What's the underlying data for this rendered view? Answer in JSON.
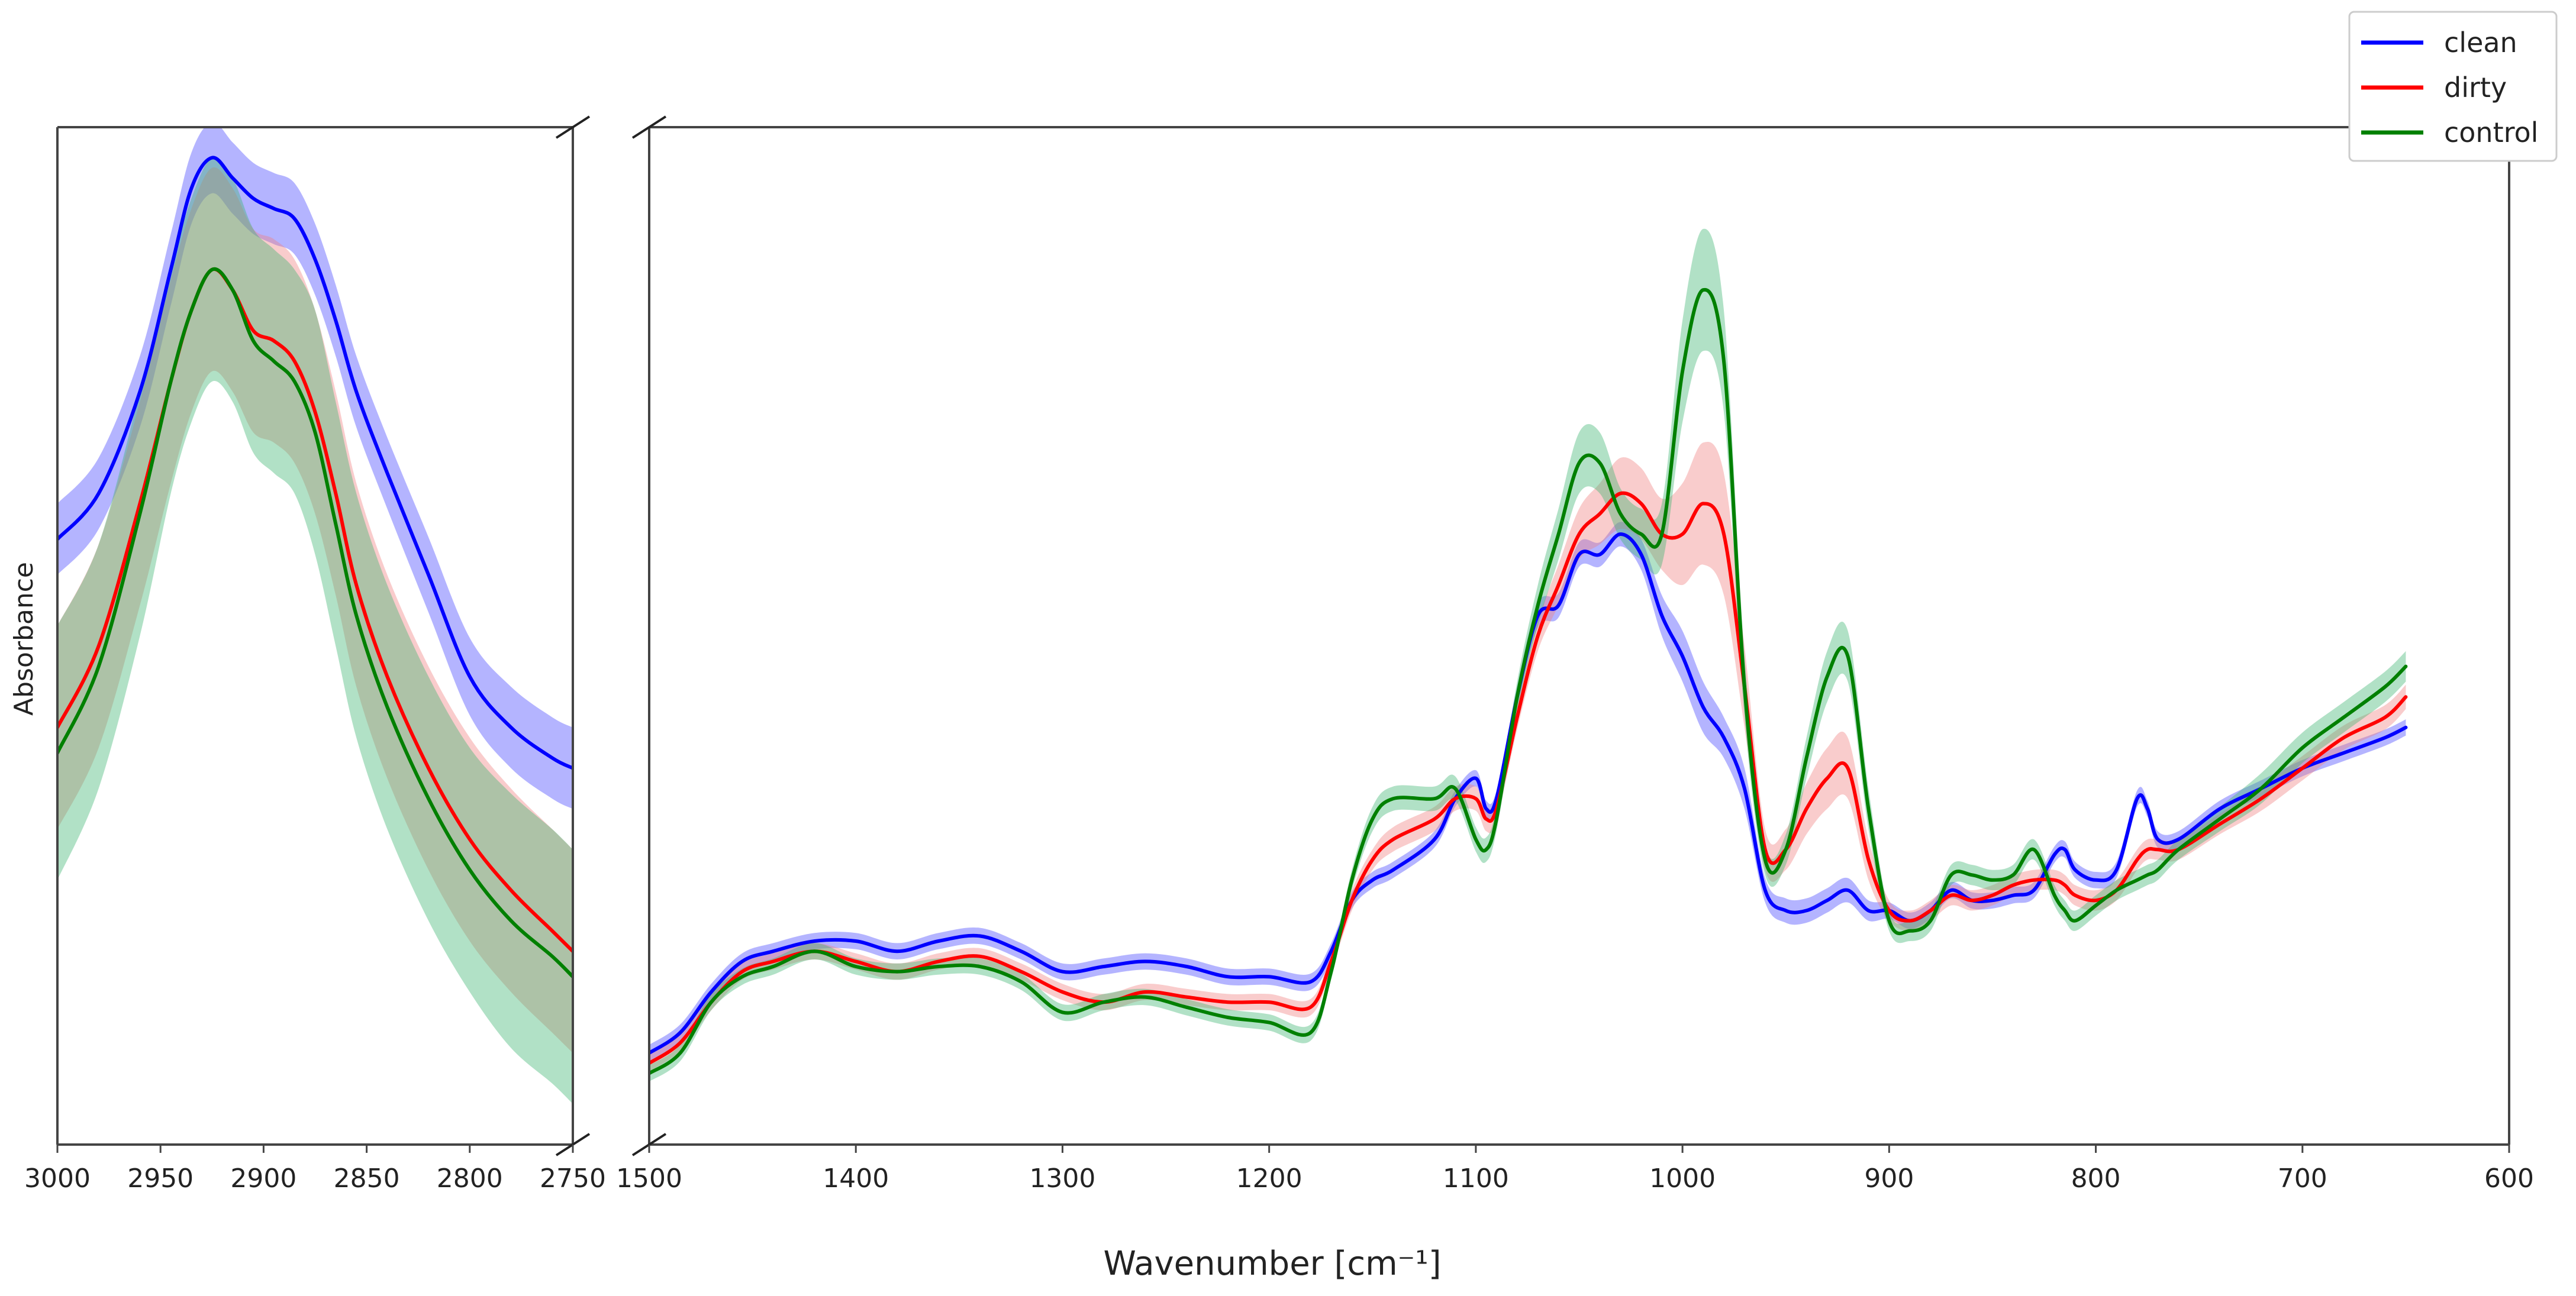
{
  "chart_data": {
    "type": "line",
    "xlabel": "Wavenumber [cm⁻¹]",
    "ylabel": "Absorbance",
    "grid": false,
    "legend_position": "top-right",
    "broken_x_axis": true,
    "panels": [
      {
        "name": "left",
        "xlim": [
          3000,
          2750
        ],
        "xticks": [
          3000,
          2950,
          2900,
          2850,
          2800,
          2750
        ],
        "ylim": [
          0,
          1
        ]
      },
      {
        "name": "right",
        "xlim": [
          1500,
          600
        ],
        "xticks": [
          1500,
          1400,
          1300,
          1200,
          1100,
          1000,
          900,
          800,
          700,
          600
        ],
        "ylim": [
          0,
          1
        ]
      }
    ],
    "series": [
      {
        "name": "clean",
        "color": "#0000ff",
        "band_color": "#4444ff",
        "left": {
          "x": [
            3000,
            2980,
            2960,
            2945,
            2935,
            2925,
            2915,
            2905,
            2895,
            2885,
            2875,
            2865,
            2855,
            2840,
            2820,
            2800,
            2780,
            2760,
            2750
          ],
          "y": [
            0.595,
            0.64,
            0.74,
            0.86,
            0.94,
            0.97,
            0.95,
            0.93,
            0.92,
            0.91,
            0.87,
            0.81,
            0.74,
            0.66,
            0.56,
            0.46,
            0.41,
            0.38,
            0.37
          ],
          "band": [
            0.035,
            0.035,
            0.035,
            0.035,
            0.035,
            0.035,
            0.035,
            0.035,
            0.035,
            0.035,
            0.035,
            0.035,
            0.035,
            0.035,
            0.037,
            0.038,
            0.04,
            0.04,
            0.04
          ]
        },
        "right": {
          "x": [
            1500,
            1485,
            1470,
            1455,
            1440,
            1420,
            1400,
            1380,
            1360,
            1340,
            1320,
            1300,
            1280,
            1260,
            1240,
            1220,
            1200,
            1180,
            1170,
            1160,
            1150,
            1140,
            1120,
            1110,
            1100,
            1095,
            1090,
            1080,
            1070,
            1060,
            1050,
            1040,
            1030,
            1020,
            1010,
            1000,
            990,
            980,
            970,
            960,
            950,
            940,
            930,
            920,
            910,
            900,
            890,
            880,
            870,
            860,
            850,
            840,
            830,
            820,
            815,
            810,
            800,
            790,
            780,
            775,
            770,
            760,
            740,
            720,
            700,
            680,
            660,
            650
          ],
          "y": [
            0.09,
            0.11,
            0.15,
            0.18,
            0.19,
            0.2,
            0.2,
            0.19,
            0.2,
            0.205,
            0.19,
            0.17,
            0.175,
            0.18,
            0.175,
            0.165,
            0.165,
            0.16,
            0.19,
            0.24,
            0.26,
            0.27,
            0.3,
            0.34,
            0.36,
            0.33,
            0.34,
            0.44,
            0.52,
            0.53,
            0.58,
            0.58,
            0.6,
            0.58,
            0.52,
            0.48,
            0.43,
            0.4,
            0.35,
            0.25,
            0.23,
            0.23,
            0.24,
            0.25,
            0.23,
            0.23,
            0.22,
            0.23,
            0.25,
            0.24,
            0.24,
            0.245,
            0.25,
            0.285,
            0.29,
            0.27,
            0.26,
            0.27,
            0.34,
            0.33,
            0.3,
            0.3,
            0.33,
            0.35,
            0.37,
            0.385,
            0.4,
            0.41
          ],
          "band": [
            0.008,
            0.008,
            0.008,
            0.008,
            0.008,
            0.008,
            0.008,
            0.008,
            0.008,
            0.008,
            0.008,
            0.008,
            0.008,
            0.008,
            0.008,
            0.008,
            0.008,
            0.008,
            0.008,
            0.008,
            0.008,
            0.008,
            0.008,
            0.008,
            0.008,
            0.008,
            0.008,
            0.01,
            0.012,
            0.012,
            0.012,
            0.012,
            0.012,
            0.015,
            0.02,
            0.025,
            0.025,
            0.02,
            0.02,
            0.012,
            0.012,
            0.012,
            0.012,
            0.012,
            0.01,
            0.008,
            0.008,
            0.008,
            0.008,
            0.008,
            0.008,
            0.008,
            0.008,
            0.008,
            0.008,
            0.008,
            0.008,
            0.008,
            0.008,
            0.008,
            0.008,
            0.008,
            0.008,
            0.008,
            0.008,
            0.008,
            0.008,
            0.008
          ]
        }
      },
      {
        "name": "dirty",
        "color": "#ff0000",
        "band_color": "#f08080",
        "left": {
          "x": [
            3000,
            2980,
            2960,
            2945,
            2935,
            2925,
            2915,
            2905,
            2895,
            2885,
            2875,
            2865,
            2855,
            2840,
            2820,
            2800,
            2780,
            2760,
            2750
          ],
          "y": [
            0.41,
            0.49,
            0.63,
            0.75,
            0.82,
            0.86,
            0.84,
            0.8,
            0.79,
            0.77,
            0.72,
            0.64,
            0.55,
            0.46,
            0.37,
            0.3,
            0.25,
            0.21,
            0.19
          ],
          "band": [
            0.1,
            0.1,
            0.1,
            0.1,
            0.1,
            0.1,
            0.1,
            0.1,
            0.1,
            0.1,
            0.1,
            0.1,
            0.1,
            0.1,
            0.1,
            0.1,
            0.1,
            0.1,
            0.1
          ]
        },
        "right": {
          "x": [
            1500,
            1485,
            1470,
            1455,
            1440,
            1420,
            1400,
            1380,
            1360,
            1340,
            1320,
            1300,
            1280,
            1260,
            1240,
            1220,
            1200,
            1180,
            1170,
            1160,
            1150,
            1140,
            1120,
            1110,
            1100,
            1095,
            1090,
            1080,
            1070,
            1060,
            1050,
            1040,
            1030,
            1020,
            1010,
            1000,
            990,
            980,
            970,
            960,
            950,
            940,
            930,
            920,
            910,
            900,
            890,
            880,
            870,
            860,
            850,
            840,
            830,
            820,
            815,
            810,
            800,
            790,
            780,
            775,
            770,
            760,
            740,
            720,
            700,
            680,
            660,
            650
          ],
          "y": [
            0.08,
            0.1,
            0.14,
            0.17,
            0.18,
            0.19,
            0.18,
            0.17,
            0.18,
            0.185,
            0.17,
            0.15,
            0.14,
            0.15,
            0.145,
            0.14,
            0.14,
            0.135,
            0.18,
            0.24,
            0.28,
            0.3,
            0.32,
            0.34,
            0.34,
            0.32,
            0.33,
            0.42,
            0.5,
            0.55,
            0.6,
            0.62,
            0.64,
            0.63,
            0.6,
            0.6,
            0.63,
            0.6,
            0.45,
            0.29,
            0.29,
            0.33,
            0.36,
            0.37,
            0.28,
            0.23,
            0.22,
            0.23,
            0.245,
            0.24,
            0.245,
            0.255,
            0.26,
            0.26,
            0.255,
            0.245,
            0.24,
            0.25,
            0.28,
            0.29,
            0.29,
            0.29,
            0.315,
            0.34,
            0.37,
            0.4,
            0.42,
            0.44
          ],
          "band": [
            0.008,
            0.008,
            0.008,
            0.008,
            0.008,
            0.008,
            0.008,
            0.008,
            0.008,
            0.008,
            0.008,
            0.008,
            0.008,
            0.008,
            0.008,
            0.008,
            0.008,
            0.008,
            0.008,
            0.01,
            0.01,
            0.012,
            0.012,
            0.012,
            0.012,
            0.012,
            0.012,
            0.012,
            0.015,
            0.02,
            0.025,
            0.03,
            0.035,
            0.035,
            0.035,
            0.05,
            0.06,
            0.06,
            0.04,
            0.02,
            0.02,
            0.025,
            0.03,
            0.03,
            0.02,
            0.01,
            0.01,
            0.01,
            0.01,
            0.01,
            0.01,
            0.01,
            0.01,
            0.01,
            0.01,
            0.01,
            0.01,
            0.01,
            0.01,
            0.01,
            0.01,
            0.01,
            0.01,
            0.012,
            0.012,
            0.012,
            0.012,
            0.012
          ]
        }
      },
      {
        "name": "control",
        "color": "#008000",
        "band_color": "#3cb371",
        "left": {
          "x": [
            3000,
            2980,
            2960,
            2945,
            2935,
            2925,
            2915,
            2905,
            2895,
            2885,
            2875,
            2865,
            2855,
            2840,
            2820,
            2800,
            2780,
            2760,
            2750
          ],
          "y": [
            0.385,
            0.47,
            0.62,
            0.75,
            0.82,
            0.86,
            0.84,
            0.79,
            0.77,
            0.75,
            0.7,
            0.61,
            0.52,
            0.43,
            0.34,
            0.27,
            0.22,
            0.185,
            0.165
          ],
          "band": [
            0.125,
            0.12,
            0.12,
            0.11,
            0.11,
            0.11,
            0.11,
            0.11,
            0.11,
            0.11,
            0.12,
            0.12,
            0.12,
            0.12,
            0.12,
            0.12,
            0.125,
            0.125,
            0.125
          ]
        },
        "right": {
          "x": [
            1500,
            1485,
            1470,
            1455,
            1440,
            1420,
            1400,
            1380,
            1360,
            1340,
            1320,
            1300,
            1280,
            1260,
            1240,
            1220,
            1200,
            1180,
            1170,
            1160,
            1150,
            1140,
            1120,
            1110,
            1100,
            1095,
            1090,
            1080,
            1070,
            1060,
            1050,
            1040,
            1030,
            1020,
            1010,
            1000,
            990,
            980,
            970,
            960,
            950,
            940,
            930,
            920,
            910,
            900,
            890,
            880,
            870,
            860,
            850,
            840,
            830,
            820,
            815,
            810,
            800,
            790,
            780,
            775,
            770,
            760,
            740,
            720,
            700,
            680,
            660,
            650
          ],
          "y": [
            0.07,
            0.09,
            0.14,
            0.165,
            0.175,
            0.19,
            0.175,
            0.17,
            0.175,
            0.175,
            0.16,
            0.13,
            0.14,
            0.145,
            0.135,
            0.125,
            0.12,
            0.11,
            0.17,
            0.26,
            0.32,
            0.34,
            0.34,
            0.35,
            0.3,
            0.29,
            0.32,
            0.44,
            0.53,
            0.6,
            0.67,
            0.67,
            0.62,
            0.6,
            0.6,
            0.76,
            0.84,
            0.77,
            0.45,
            0.28,
            0.29,
            0.38,
            0.46,
            0.48,
            0.33,
            0.22,
            0.21,
            0.22,
            0.265,
            0.265,
            0.26,
            0.265,
            0.29,
            0.245,
            0.23,
            0.22,
            0.235,
            0.25,
            0.26,
            0.265,
            0.27,
            0.29,
            0.32,
            0.35,
            0.39,
            0.42,
            0.45,
            0.47
          ],
          "band": [
            0.008,
            0.008,
            0.008,
            0.008,
            0.008,
            0.008,
            0.008,
            0.008,
            0.008,
            0.008,
            0.008,
            0.008,
            0.008,
            0.008,
            0.008,
            0.008,
            0.008,
            0.008,
            0.008,
            0.01,
            0.012,
            0.012,
            0.012,
            0.012,
            0.012,
            0.012,
            0.012,
            0.015,
            0.02,
            0.025,
            0.03,
            0.03,
            0.025,
            0.025,
            0.03,
            0.05,
            0.06,
            0.05,
            0.03,
            0.015,
            0.015,
            0.02,
            0.025,
            0.025,
            0.02,
            0.01,
            0.01,
            0.01,
            0.01,
            0.01,
            0.01,
            0.01,
            0.01,
            0.01,
            0.01,
            0.01,
            0.01,
            0.01,
            0.01,
            0.01,
            0.01,
            0.01,
            0.012,
            0.015,
            0.015,
            0.015,
            0.015,
            0.015
          ]
        }
      }
    ]
  }
}
